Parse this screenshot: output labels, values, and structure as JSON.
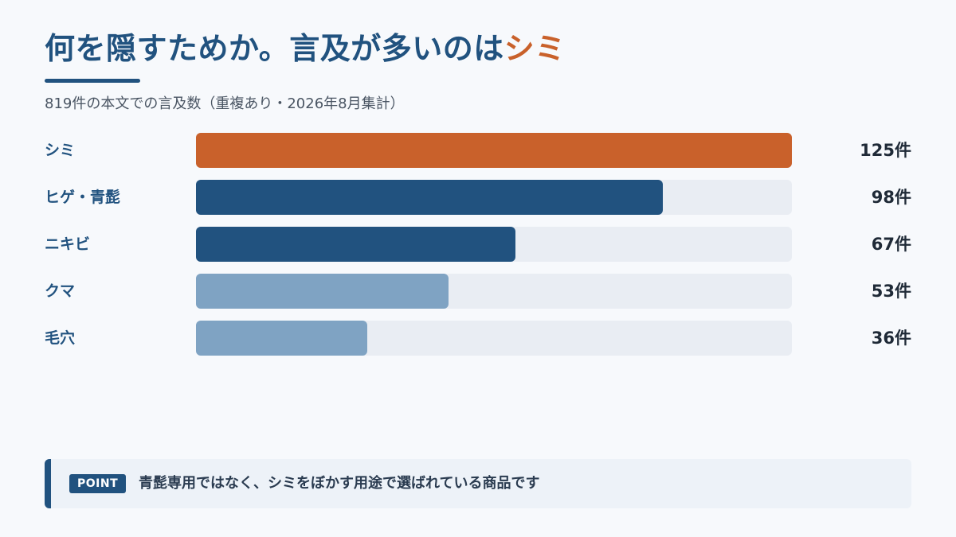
{
  "header": {
    "title_main": "何を隠すためか。言及が多いのは",
    "title_accent": "シミ",
    "subtitle": "819件の本文での言及数（重複あり・2026年8月集計）"
  },
  "colors": {
    "accent": "#c9612b",
    "primary": "#21527f",
    "secondary": "#7fa3c3",
    "track": "#e9edf3"
  },
  "chart_data": {
    "type": "bar",
    "orientation": "horizontal",
    "categories": [
      "シミ",
      "ヒゲ・青髭",
      "ニキビ",
      "クマ",
      "毛穴"
    ],
    "values": [
      125,
      98,
      67,
      53,
      36
    ],
    "value_labels": [
      "125件",
      "98件",
      "67件",
      "53件",
      "36件"
    ],
    "bar_colors": [
      "#c9612b",
      "#21527f",
      "#21527f",
      "#7fa3c3",
      "#7fa3c3"
    ],
    "xlim": [
      0,
      125
    ],
    "grid": false
  },
  "point": {
    "badge": "POINT",
    "text": "青髭専用ではなく、シミをぼかす用途で選ばれている商品です"
  }
}
